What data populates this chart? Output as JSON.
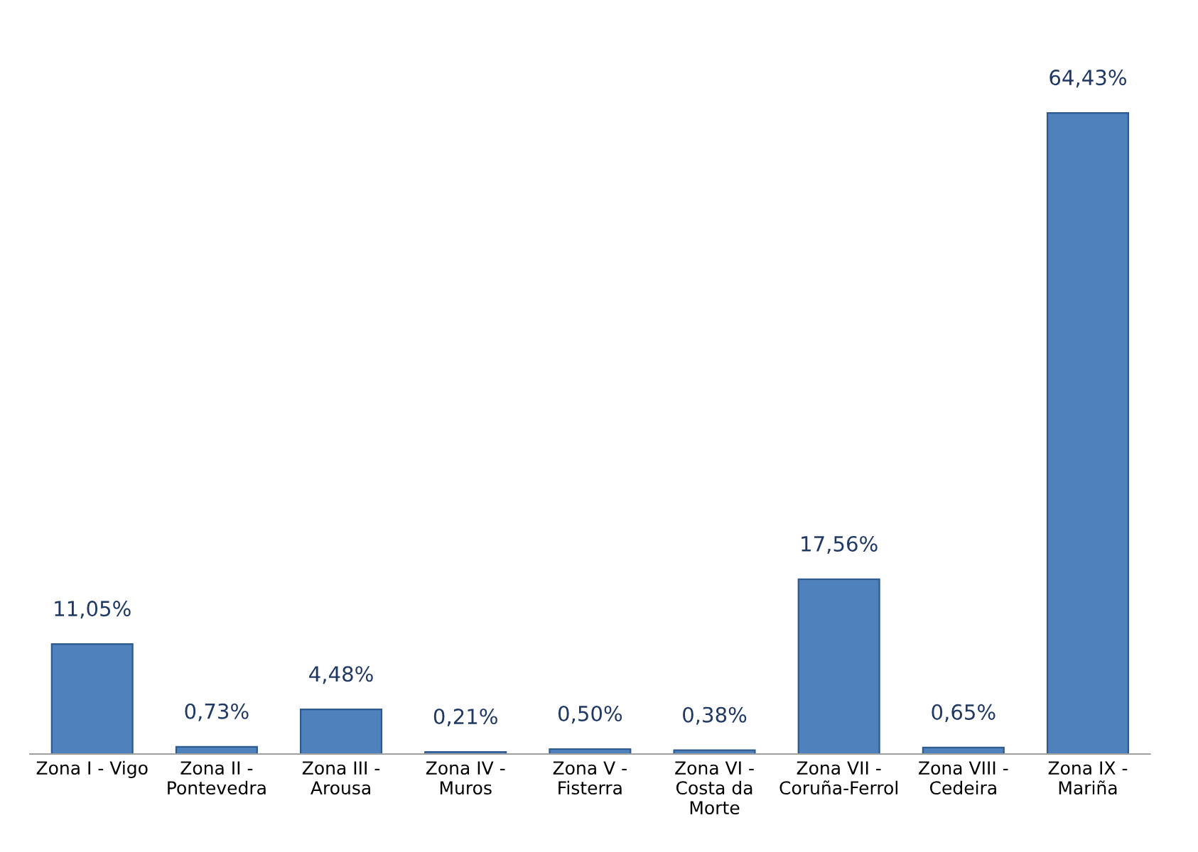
{
  "chart_data": {
    "type": "bar",
    "categories": [
      "Zona I - Vigo",
      "Zona II -\nPontevedra",
      "Zona III -\nArousa",
      "Zona IV -\nMuros",
      "Zona V -\nFisterra",
      "Zona VI -\nCosta da\nMorte",
      "Zona VII -\nCoruña-Ferrol",
      "Zona VIII -\nCedeira",
      "Zona IX -\nMariña"
    ],
    "values": [
      11.05,
      0.73,
      4.48,
      0.21,
      0.5,
      0.38,
      17.56,
      0.65,
      64.43
    ],
    "value_labels": [
      "11,05%",
      "0,73%",
      "4,48%",
      "0,21%",
      "0,50%",
      "0,38%",
      "17,56%",
      "0,65%",
      "64,43%"
    ],
    "color": "#4f81bd",
    "grid": false,
    "legend": false,
    "tick_labels": "x"
  }
}
